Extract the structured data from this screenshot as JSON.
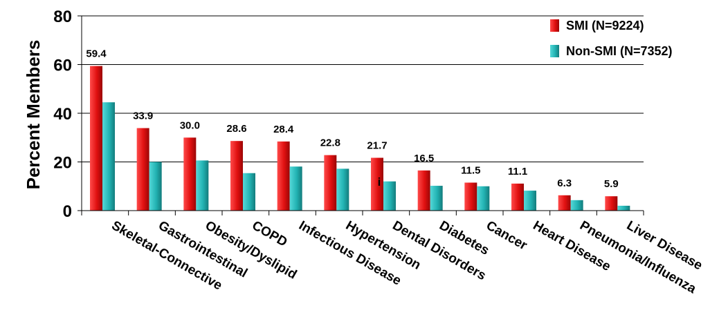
{
  "chart_data": {
    "type": "bar",
    "title": "",
    "xlabel": "",
    "ylabel": "Percent Members",
    "ylim": [
      0,
      80
    ],
    "yticks": [
      0,
      20,
      40,
      60,
      80
    ],
    "grid": true,
    "legend_position": "top-right",
    "categories": [
      "Skeletal-Connective",
      "Gastrointestinal",
      "Obesity/Dyslipid",
      "COPD",
      "Infectious Disease",
      "Hypertension",
      "Dental Disorders",
      "Diabetes",
      "Cancer",
      "Heart Disease",
      "Pneumonia/Influenza",
      "Liver Disease"
    ],
    "series": [
      {
        "name": "SMI (N=9224)",
        "color": "#e01010",
        "values": [
          59.4,
          33.9,
          30.0,
          28.6,
          28.4,
          22.8,
          21.7,
          16.5,
          11.5,
          11.1,
          6.3,
          5.9
        ],
        "data_labels": [
          "59.4",
          "33.9",
          "30.0",
          "28.6",
          "28.4",
          "22.8",
          "21.7",
          "16.5",
          "11.5",
          "11.1",
          "6.3",
          "5.9"
        ]
      },
      {
        "name": "Non-SMI (N=7352)",
        "color": "#22b3b3",
        "values": [
          44.5,
          20.0,
          20.6,
          15.4,
          18.1,
          17.2,
          12.0,
          10.2,
          10.0,
          8.2,
          4.3,
          2.0
        ]
      }
    ],
    "annotations": [
      "i"
    ]
  }
}
